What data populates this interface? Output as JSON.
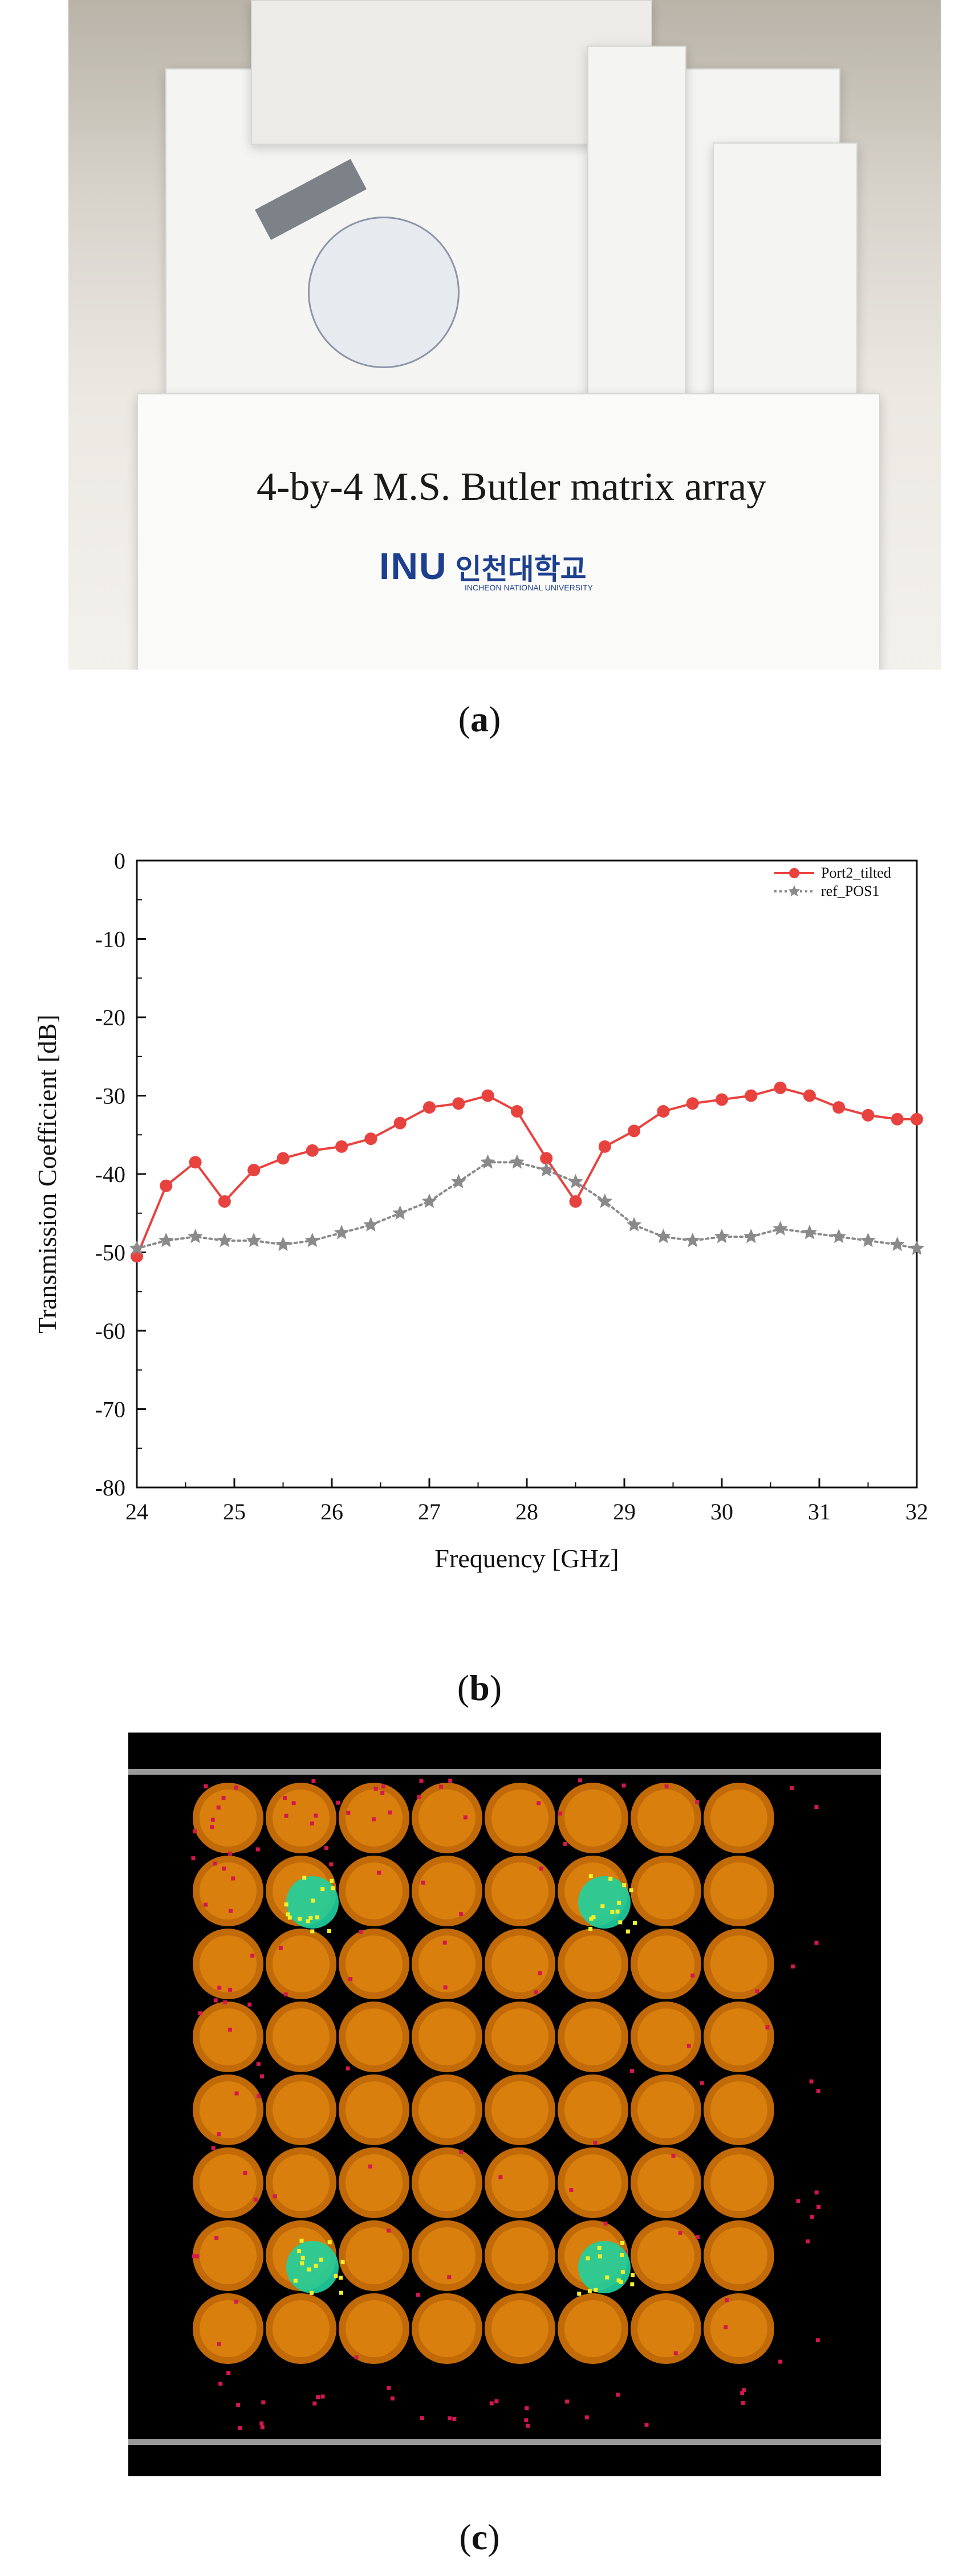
{
  "photo": {
    "caption_in_photo": "4-by-4 M.S. Butler matrix array",
    "logo_text": "INU",
    "logo_korean": "인천대학교",
    "logo_english": "INCHEON NATIONAL UNIVERSITY"
  },
  "labels": {
    "a": "a",
    "b": "b",
    "c": "c",
    "open": "(",
    "close": ")"
  },
  "chart_data": {
    "type": "line",
    "title": "",
    "xlabel": "Frequency [GHz]",
    "ylabel": "Transmission Coefficient [dB]",
    "xlim": [
      24,
      32
    ],
    "ylim": [
      -80,
      0
    ],
    "xticks": [
      24,
      25,
      26,
      27,
      28,
      29,
      30,
      31,
      32
    ],
    "yticks": [
      0,
      -10,
      -20,
      -30,
      -40,
      -50,
      -60,
      -70,
      -80
    ],
    "legend_position": "top-right",
    "series": [
      {
        "name": "Port2_tilted",
        "color": "#e8423f",
        "marker": "circle",
        "style": "solid",
        "x": [
          24.0,
          24.3,
          24.6,
          24.9,
          25.2,
          25.5,
          25.8,
          26.1,
          26.4,
          26.7,
          27.0,
          27.3,
          27.6,
          27.9,
          28.2,
          28.5,
          28.8,
          29.1,
          29.4,
          29.7,
          30.0,
          30.3,
          30.6,
          30.9,
          31.2,
          31.5,
          31.8,
          32.0
        ],
        "y": [
          -50.5,
          -41.5,
          -38.5,
          -43.5,
          -39.5,
          -38.0,
          -37.0,
          -36.5,
          -35.5,
          -33.5,
          -31.5,
          -31.0,
          -30.0,
          -32.0,
          -38.0,
          -43.5,
          -36.5,
          -34.5,
          -32.0,
          -31.0,
          -30.5,
          -30.0,
          -29.0,
          -30.0,
          -31.5,
          -32.5,
          -33.0,
          -33.0
        ]
      },
      {
        "name": "ref_POS1",
        "color": "#8a8a8a",
        "marker": "star",
        "style": "dotted",
        "x": [
          24.0,
          24.3,
          24.6,
          24.9,
          25.2,
          25.5,
          25.8,
          26.1,
          26.4,
          26.7,
          27.0,
          27.3,
          27.6,
          27.9,
          28.2,
          28.5,
          28.8,
          29.1,
          29.4,
          29.7,
          30.0,
          30.3,
          30.6,
          30.9,
          31.2,
          31.5,
          31.8,
          32.0
        ],
        "y": [
          -49.5,
          -48.5,
          -48.0,
          -48.5,
          -48.5,
          -49.0,
          -48.5,
          -47.5,
          -46.5,
          -45.0,
          -43.5,
          -41.0,
          -38.5,
          -38.5,
          -39.5,
          -41.0,
          -43.5,
          -46.5,
          -48.0,
          -48.5,
          -48.0,
          -48.0,
          -47.0,
          -47.5,
          -48.0,
          -48.5,
          -49.0,
          -49.5
        ]
      }
    ]
  },
  "sim": {
    "grid_rows": 8,
    "grid_cols": 8,
    "background": "#000000",
    "element_color": "#d97f0d",
    "fringe_color": "#d4174f",
    "hotspot_color": "#1fd1a0",
    "highlight_color": "#f1f12a",
    "hotspots": [
      [
        1,
        1
      ],
      [
        1,
        5
      ],
      [
        6,
        1
      ],
      [
        6,
        5
      ]
    ]
  }
}
